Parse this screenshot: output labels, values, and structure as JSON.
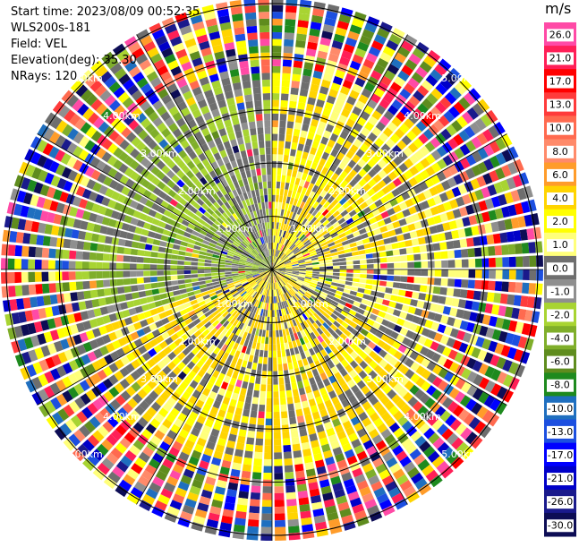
{
  "header": {
    "start_time": "Start time: 2023/08/09 00:52:35",
    "instrument": "WLS200s-181",
    "field": "Field: VEL",
    "elevation": "Elevation(deg): 35.30",
    "nrays": "NRays: 120"
  },
  "chart_data": {
    "type": "heatmap",
    "subtype": "ppi-polar",
    "rays": 120,
    "range_rings_km": [
      1.0,
      2.0,
      3.0,
      4.0,
      5.0
    ],
    "range_labels": [
      "1.00km",
      "2.00km",
      "3.00km",
      "4.00km",
      "5.00km"
    ],
    "max_range_km": 5.1,
    "colorbar": {
      "unit": "m/s",
      "tick_labels": [
        "26.0",
        "21.0",
        "17.0",
        "13.0",
        "10.0",
        "8.0",
        "6.0",
        "4.0",
        "2.0",
        "1.0",
        "0.0",
        "-1.0",
        "-2.0",
        "-4.0",
        "-6.0",
        "-8.0",
        "-10.0",
        "-13.0",
        "-17.0",
        "-21.0",
        "-26.0",
        "-30.0"
      ],
      "colors": [
        "#ff4aa6",
        "#ff1f57",
        "#ff0000",
        "#ff3b3b",
        "#ff6a4f",
        "#ff8a6a",
        "#ff9c2a",
        "#ffd400",
        "#ffff00",
        "#ffff7a",
        "#6e6e6e",
        "#8f8f8f",
        "#a8d432",
        "#7fae2a",
        "#5f8c1e",
        "#1e8a1e",
        "#1f6fbf",
        "#1c4fe0",
        "#0000ff",
        "#0000c8",
        "#1a1a8c",
        "#0d0d55"
      ]
    },
    "sectors": [
      {
        "from_deg": 0,
        "to_deg": 80,
        "value_range": [
          0.5,
          3.0
        ],
        "noise": 0.15
      },
      {
        "from_deg": 80,
        "to_deg": 120,
        "value_range": [
          -0.5,
          1.5
        ],
        "noise": 0.35
      },
      {
        "from_deg": 120,
        "to_deg": 250,
        "value_range": [
          0.5,
          4.0
        ],
        "noise": 0.2
      },
      {
        "from_deg": 250,
        "to_deg": 330,
        "value_range": [
          -6.0,
          -1.5
        ],
        "noise": 0.15
      },
      {
        "from_deg": 330,
        "to_deg": 360,
        "value_range": [
          -3.0,
          0.0
        ],
        "noise": 0.3
      }
    ],
    "noise_start_km": 3.6
  }
}
